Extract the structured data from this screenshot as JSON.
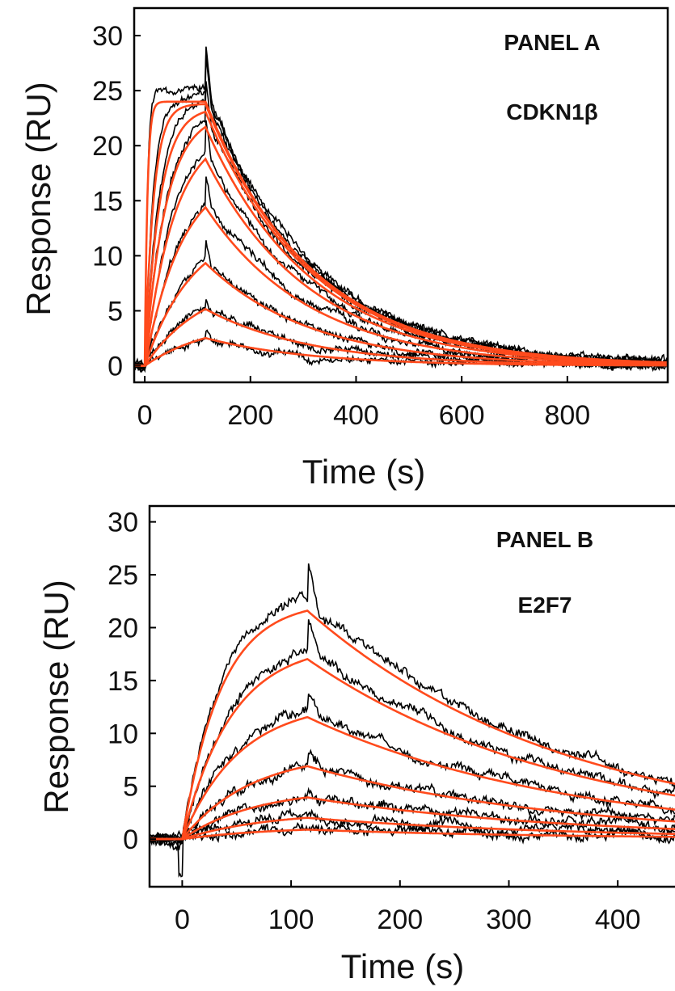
{
  "chart_data": [
    {
      "type": "line",
      "panel_label": "PANEL A",
      "analyte": "CDKN1β",
      "xlabel": "Time (s)",
      "ylabel": "Response (RU)",
      "xlim": [
        -20,
        990
      ],
      "ylim": [
        -1.5,
        32.5
      ],
      "x_ticks": [
        0,
        200,
        400,
        600,
        800
      ],
      "y_ticks": [
        0,
        5,
        10,
        15,
        20,
        25,
        30
      ],
      "grid": false,
      "injection_end_s": 115,
      "series_colors": {
        "measured": "#000000",
        "fitted": "#ff4a1c"
      },
      "curves": [
        {
          "rmax": 24.0,
          "kobs": 0.2,
          "koff": 0.005
        },
        {
          "rmax": 23.8,
          "kobs": 0.06,
          "koff": 0.005
        },
        {
          "rmax": 23.5,
          "kobs": 0.035,
          "koff": 0.005
        },
        {
          "rmax": 23.0,
          "kobs": 0.025,
          "koff": 0.005
        },
        {
          "rmax": 21.5,
          "kobs": 0.018,
          "koff": 0.005
        },
        {
          "rmax": 18.0,
          "kobs": 0.014,
          "koff": 0.005
        },
        {
          "rmax": 13.0,
          "kobs": 0.011,
          "koff": 0.005
        },
        {
          "rmax": 8.0,
          "kobs": 0.009,
          "koff": 0.005
        },
        {
          "rmax": 4.2,
          "kobs": 0.008,
          "koff": 0.005
        }
      ]
    },
    {
      "type": "line",
      "panel_label": "PANEL B",
      "analyte": "E2F7",
      "xlabel": "Time (s)",
      "ylabel": "Response (RU)",
      "xlim": [
        -30,
        460
      ],
      "ylim": [
        -4.5,
        31.5
      ],
      "x_ticks": [
        0,
        100,
        200,
        300,
        400
      ],
      "y_ticks": [
        0,
        5,
        10,
        15,
        20,
        25,
        30
      ],
      "grid": false,
      "injection_end_s": 115,
      "series_colors": {
        "measured": "#000000",
        "fitted": "#ff4a1c"
      },
      "curves": [
        {
          "rmax": 22.5,
          "kobs": 0.028,
          "koff": 0.0042
        },
        {
          "rmax": 18.5,
          "kobs": 0.022,
          "koff": 0.0042
        },
        {
          "rmax": 13.0,
          "kobs": 0.019,
          "koff": 0.0042
        },
        {
          "rmax": 8.2,
          "kobs": 0.016,
          "koff": 0.0042
        },
        {
          "rmax": 4.8,
          "kobs": 0.015,
          "koff": 0.0042
        },
        {
          "rmax": 2.6,
          "kobs": 0.013,
          "koff": 0.0042
        },
        {
          "rmax": 1.2,
          "kobs": 0.012,
          "koff": 0.0042
        }
      ]
    }
  ]
}
